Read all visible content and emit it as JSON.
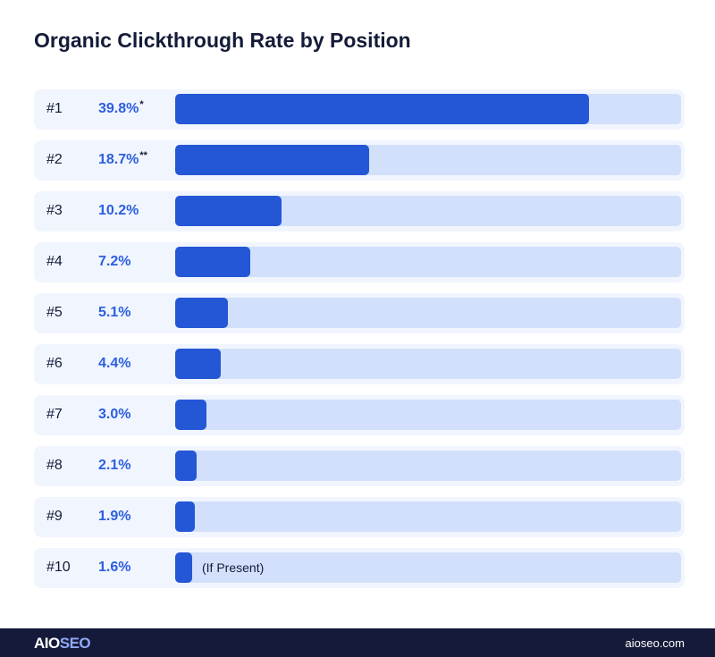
{
  "chart_data": {
    "type": "bar",
    "orientation": "horizontal",
    "title": "Organic Clickthrough Rate by Position",
    "categories": [
      "#1",
      "#2",
      "#3",
      "#4",
      "#5",
      "#6",
      "#7",
      "#8",
      "#9",
      "#10"
    ],
    "values": [
      39.8,
      18.7,
      10.2,
      7.2,
      5.1,
      4.4,
      3.0,
      2.1,
      1.9,
      1.6
    ],
    "labels": [
      "39.8%",
      "18.7%",
      "10.2%",
      "7.2%",
      "5.1%",
      "4.4%",
      "3.0%",
      "2.1%",
      "1.9%",
      "1.6%"
    ],
    "markers": [
      "*",
      "**",
      "",
      "",
      "",
      "",
      "",
      "",
      "",
      ""
    ],
    "notes": [
      "",
      "",
      "",
      "",
      "",
      "",
      "",
      "",
      "",
      "(If Present)"
    ],
    "colors": {
      "fill": "#2457d6",
      "track": "#d3e0fb",
      "row": "#f1f5fe",
      "value_text": "#2b5fe0"
    }
  },
  "footer": {
    "logo": "AIOSEO",
    "logo_a": "AIO",
    "logo_b": "SEO",
    "site": "aioseo.com"
  }
}
